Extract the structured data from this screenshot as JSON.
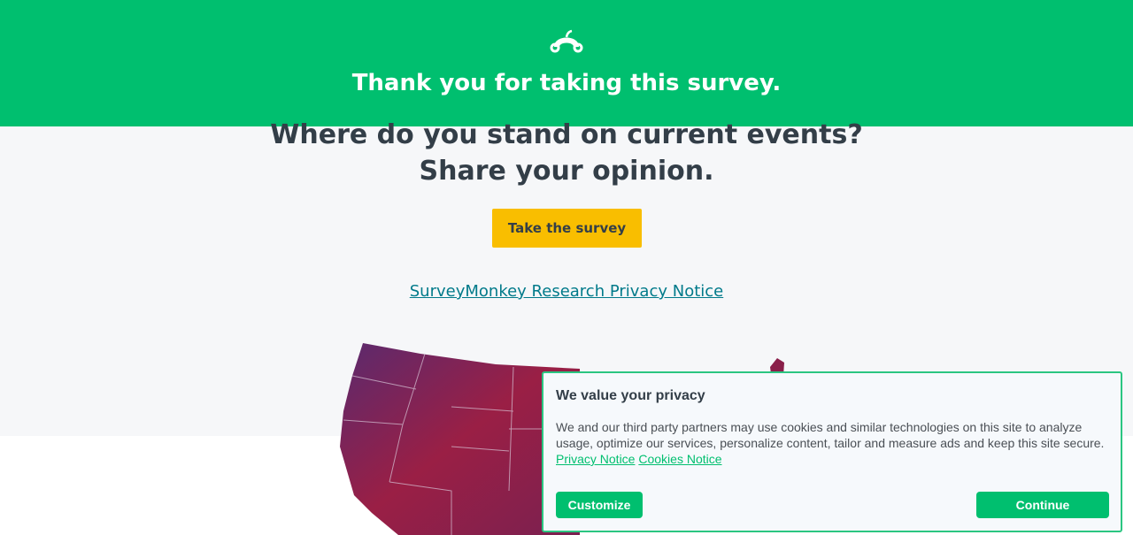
{
  "header": {
    "title": "Thank you for taking this survey.",
    "logo_icon": "surveymonkey-logo-icon",
    "bg_color": "#00bf6f"
  },
  "promo": {
    "line1": "Where do you stand on current events?",
    "line2": "Share your opinion.",
    "button": "Take the survey",
    "privacy_link": "SurveyMonkey Research Privacy Notice"
  },
  "cookie": {
    "title": "We value your privacy",
    "body": "We and our third party partners may use cookies and similar technologies on this site to analyze usage, optimize our services, personalize content, tailor and measure ads and keep this site secure.",
    "privacy_link": "Privacy Notice",
    "cookies_link": "Cookies Notice",
    "customize": "Customize",
    "continue": "Continue"
  }
}
